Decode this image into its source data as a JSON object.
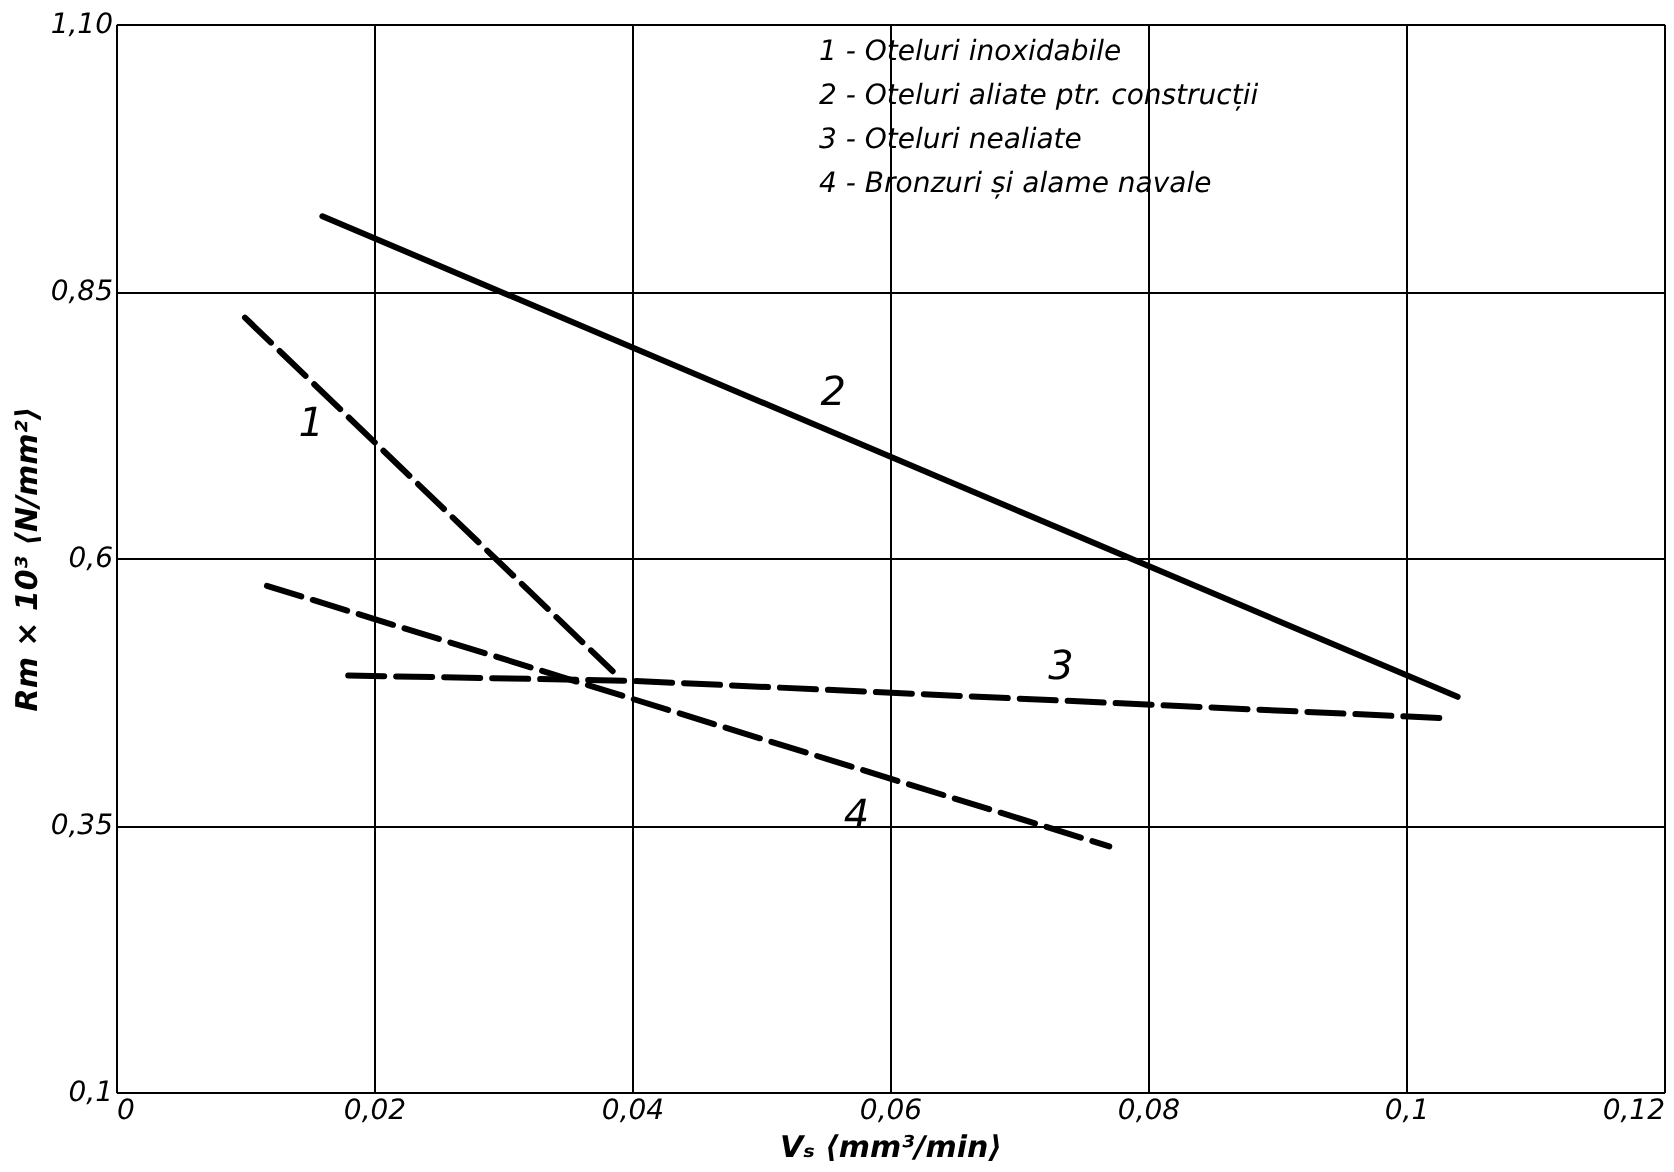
{
  "chart_data": {
    "type": "line",
    "xlabel": "Vₛ ⟨mm³/min⟩",
    "ylabel": "Rm × 10³ ⟨N/mm²⟩",
    "xlim": [
      0,
      0.12
    ],
    "ylim": [
      0.1,
      1.1
    ],
    "xticks": [
      0,
      {
        "value": 0.02,
        "label": "0,02"
      },
      {
        "value": 0.04,
        "label": "0,04"
      },
      {
        "value": 0.06,
        "label": "0,06"
      },
      {
        "value": 0.08,
        "label": "0,08"
      },
      {
        "value": 0.1,
        "label": "0,1"
      },
      {
        "value": 0.12,
        "label": "0,12"
      }
    ],
    "yticks": [
      {
        "value": 0.1,
        "label": "0,1"
      },
      {
        "value": 0.35,
        "label": "0,35"
      },
      {
        "value": 0.6,
        "label": "0,6"
      },
      {
        "value": 0.85,
        "label": "0,85"
      },
      {
        "value": 1.1,
        "label": "1,10"
      }
    ],
    "grid": true,
    "marker": "none",
    "series": [
      {
        "name": "1",
        "color": "#000000",
        "line_style": "dashed",
        "x": [
          0.01,
          0.0385
        ],
        "values": [
          0.825,
          0.494
        ]
      },
      {
        "name": "2",
        "color": "#000000",
        "line_style": "solid",
        "x": [
          0.016,
          0.104
        ],
        "values": [
          0.92,
          0.47
        ]
      },
      {
        "name": "3",
        "color": "#000000",
        "line_style": "dashed",
        "x": [
          0.018,
          0.04,
          0.103
        ],
        "values": [
          0.49,
          0.485,
          0.45
        ]
      },
      {
        "name": "4",
        "color": "#000000",
        "line_style": "dashed",
        "x": [
          0.0117,
          0.077
        ],
        "values": [
          0.574,
          0.33
        ]
      }
    ],
    "annotations": [
      "1 - Oteluri inoxidabile",
      "2 - Oteluri aliate ptr. construcții",
      "3 - Oteluri nealiate",
      "4 - Bronzuri și alame navale"
    ]
  }
}
